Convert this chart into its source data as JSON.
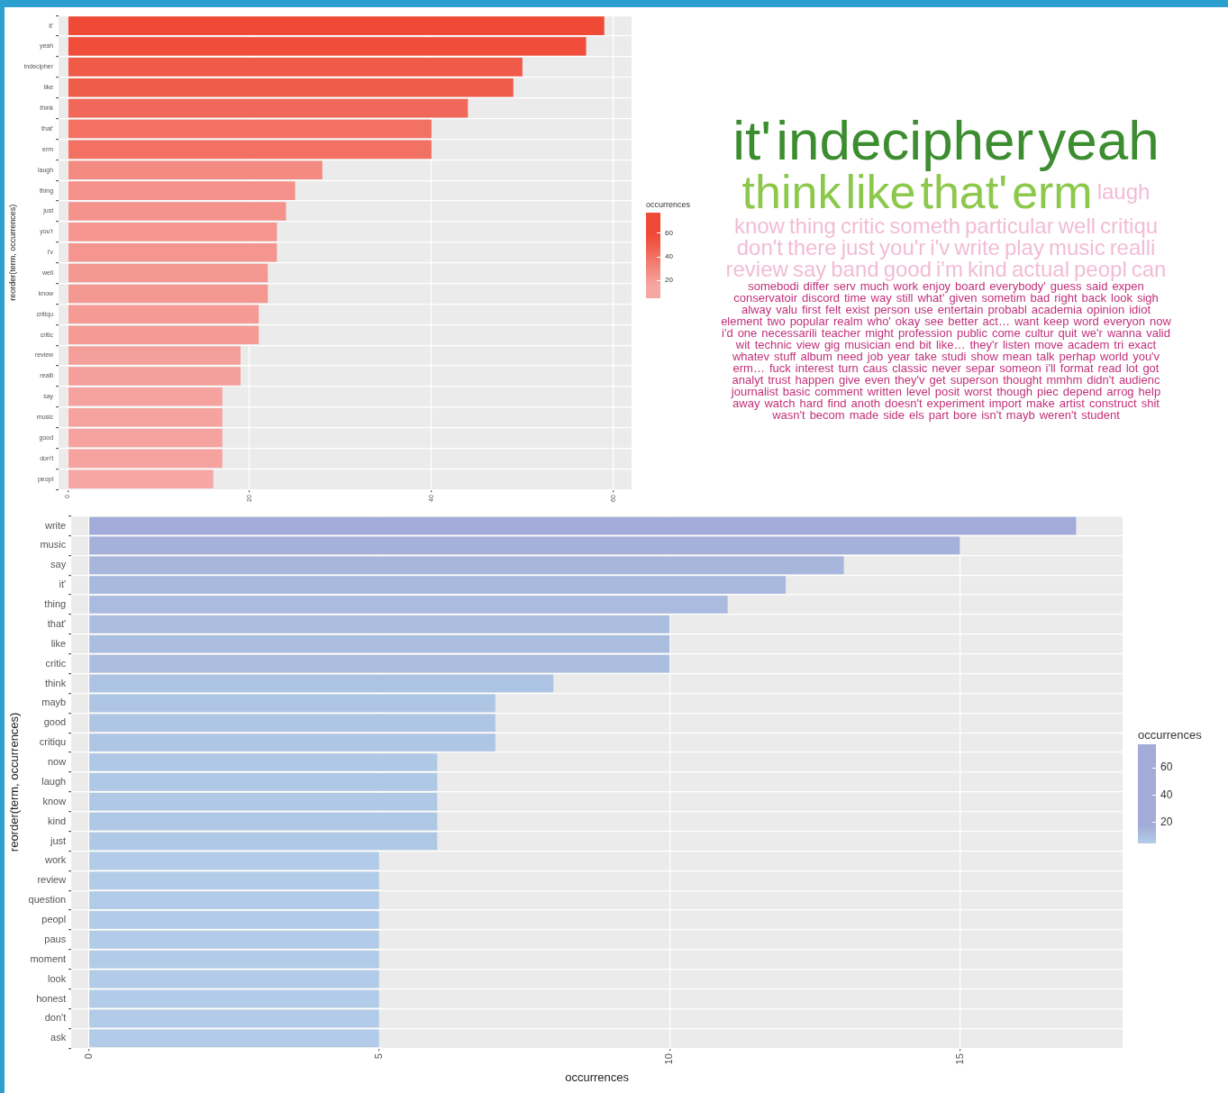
{
  "chart_data": [
    {
      "type": "bar",
      "orientation": "horizontal",
      "ylabel": "reorder(term, occurrences)",
      "clabel": "occurrences",
      "clim": [
        5,
        77
      ],
      "cticks": [
        20,
        40,
        60
      ],
      "grid": true,
      "xlim": [
        -1,
        62
      ],
      "xticks": [
        0,
        20,
        40,
        60
      ],
      "categories": [
        "it'",
        "yeah",
        "indecipher",
        "like",
        "think",
        "that'",
        "erm",
        "laugh",
        "thing",
        "just",
        "you'r",
        "i'v",
        "well",
        "know",
        "critiqu",
        "critic",
        "review",
        "realli",
        "say",
        "music",
        "good",
        "don't",
        "peopl"
      ],
      "values": [
        59,
        57,
        50,
        49,
        44,
        40,
        40,
        28,
        25,
        24,
        23,
        23,
        22,
        22,
        21,
        21,
        19,
        19,
        17,
        17,
        17,
        17,
        16
      ],
      "colors": [
        "#ee4a36",
        "#ef4c39",
        "#f05a48",
        "#f05c4a",
        "#f1685a",
        "#f27163",
        "#f27163",
        "#f38b82",
        "#f4918a",
        "#f4938c",
        "#f4968f",
        "#f4968f",
        "#f49892",
        "#f49892",
        "#f59a95",
        "#f59a95",
        "#f59f9a",
        "#f59f9a",
        "#f6a3a0",
        "#f6a3a0",
        "#f6a3a0",
        "#f6a3a0",
        "#f6a6a3"
      ]
    },
    {
      "type": "other",
      "annotations": [
        "it'",
        "indecipher",
        "yeah",
        "think",
        "like",
        "that'",
        "erm",
        "laugh",
        "know",
        "thing",
        "critic",
        "someth",
        "particular",
        "well",
        "critiqu",
        "don't",
        "there",
        "just",
        "you'r",
        "i'v",
        "write",
        "play",
        "music",
        "realli",
        "review",
        "say",
        "band",
        "good",
        "i'm",
        "kind",
        "actual",
        "peopl",
        "can",
        "somebodi",
        "differ",
        "serv",
        "much",
        "work",
        "enjoy",
        "board",
        "everybody'",
        "guess",
        "said",
        "expen",
        "conservatoir",
        "discord",
        "time",
        "way",
        "still",
        "what'",
        "given",
        "sometim",
        "bad",
        "right",
        "back",
        "look",
        "sigh",
        "alway",
        "valu",
        "first",
        "felt",
        "exist",
        "person",
        "use",
        "entertain",
        "probabl",
        "academia",
        "opinion",
        "idiot",
        "element",
        "two",
        "popular",
        "realm",
        "who'",
        "okay",
        "see",
        "better",
        "act…",
        "want",
        "keep",
        "word",
        "everyon",
        "now",
        "i'd",
        "one",
        "necessarili",
        "teacher",
        "might",
        "profession",
        "public",
        "come",
        "cultur",
        "quit",
        "we'r",
        "wanna",
        "valid",
        "wit",
        "technic",
        "view",
        "gig",
        "musician",
        "end",
        "bit",
        "like…",
        "they'r",
        "listen",
        "move",
        "academ",
        "tri",
        "exact",
        "whatev",
        "stuff",
        "album",
        "need",
        "job",
        "year",
        "take",
        "studi",
        "show",
        "mean",
        "talk",
        "perhap",
        "world",
        "you'v",
        "erm…",
        "fuck",
        "interest",
        "turn",
        "caus",
        "classic",
        "never",
        "separ",
        "someon",
        "i'll",
        "format",
        "read",
        "lot",
        "got",
        "analyt",
        "trust",
        "happen",
        "give",
        "even",
        "they'v",
        "get",
        "superson",
        "thought",
        "mmhm",
        "didn't",
        "audienc",
        "journalist",
        "basic",
        "comment",
        "written",
        "level",
        "posit",
        "worst",
        "though",
        "piec",
        "depend",
        "arrog",
        "help",
        "away",
        "watch",
        "hard",
        "find",
        "anoth",
        "doesn't",
        "experiment",
        "import",
        "make",
        "artist",
        "construct",
        "shit",
        "wasn't",
        "becom",
        "made",
        "side",
        "els",
        "part",
        "bore",
        "isn't",
        "mayb",
        "weren't",
        "student"
      ]
    },
    {
      "type": "bar",
      "orientation": "horizontal",
      "xlabel": "occurrences",
      "ylabel": "reorder(term, occurrences)",
      "clabel": "occurrences",
      "clim": [
        4,
        77
      ],
      "cticks": [
        20,
        40,
        60
      ],
      "grid": true,
      "xlim": [
        -0.3,
        17.8
      ],
      "xticks": [
        0,
        5,
        10,
        15
      ],
      "categories": [
        "write",
        "music",
        "say",
        "it'",
        "thing",
        "that'",
        "like",
        "critic",
        "think",
        "mayb",
        "good",
        "critiqu",
        "now",
        "laugh",
        "know",
        "kind",
        "just",
        "work",
        "review",
        "question",
        "peopl",
        "paus",
        "moment",
        "look",
        "honest",
        "don't",
        "ask"
      ],
      "values": [
        17,
        15,
        13,
        12,
        11,
        10,
        10,
        10,
        8,
        7,
        7,
        7,
        6,
        6,
        6,
        6,
        6,
        5,
        5,
        5,
        5,
        5,
        5,
        5,
        5,
        5,
        5
      ],
      "colors": [
        "#a3abd8",
        "#a6b1da",
        "#a8b6dc",
        "#a9b9de",
        "#aabbdf",
        "#abbee0",
        "#abbee0",
        "#abbee0",
        "#adc3e3",
        "#aec5e4",
        "#aec5e4",
        "#aec5e4",
        "#afc8e6",
        "#afc8e6",
        "#afc8e6",
        "#afc8e6",
        "#afc8e6",
        "#b1cbe8",
        "#b1cbe8",
        "#b1cbe8",
        "#b1cbe8",
        "#b1cbe8",
        "#b1cbe8",
        "#b1cbe8",
        "#b1cbe8",
        "#b1cbe8",
        "#b1cbe8"
      ]
    }
  ]
}
